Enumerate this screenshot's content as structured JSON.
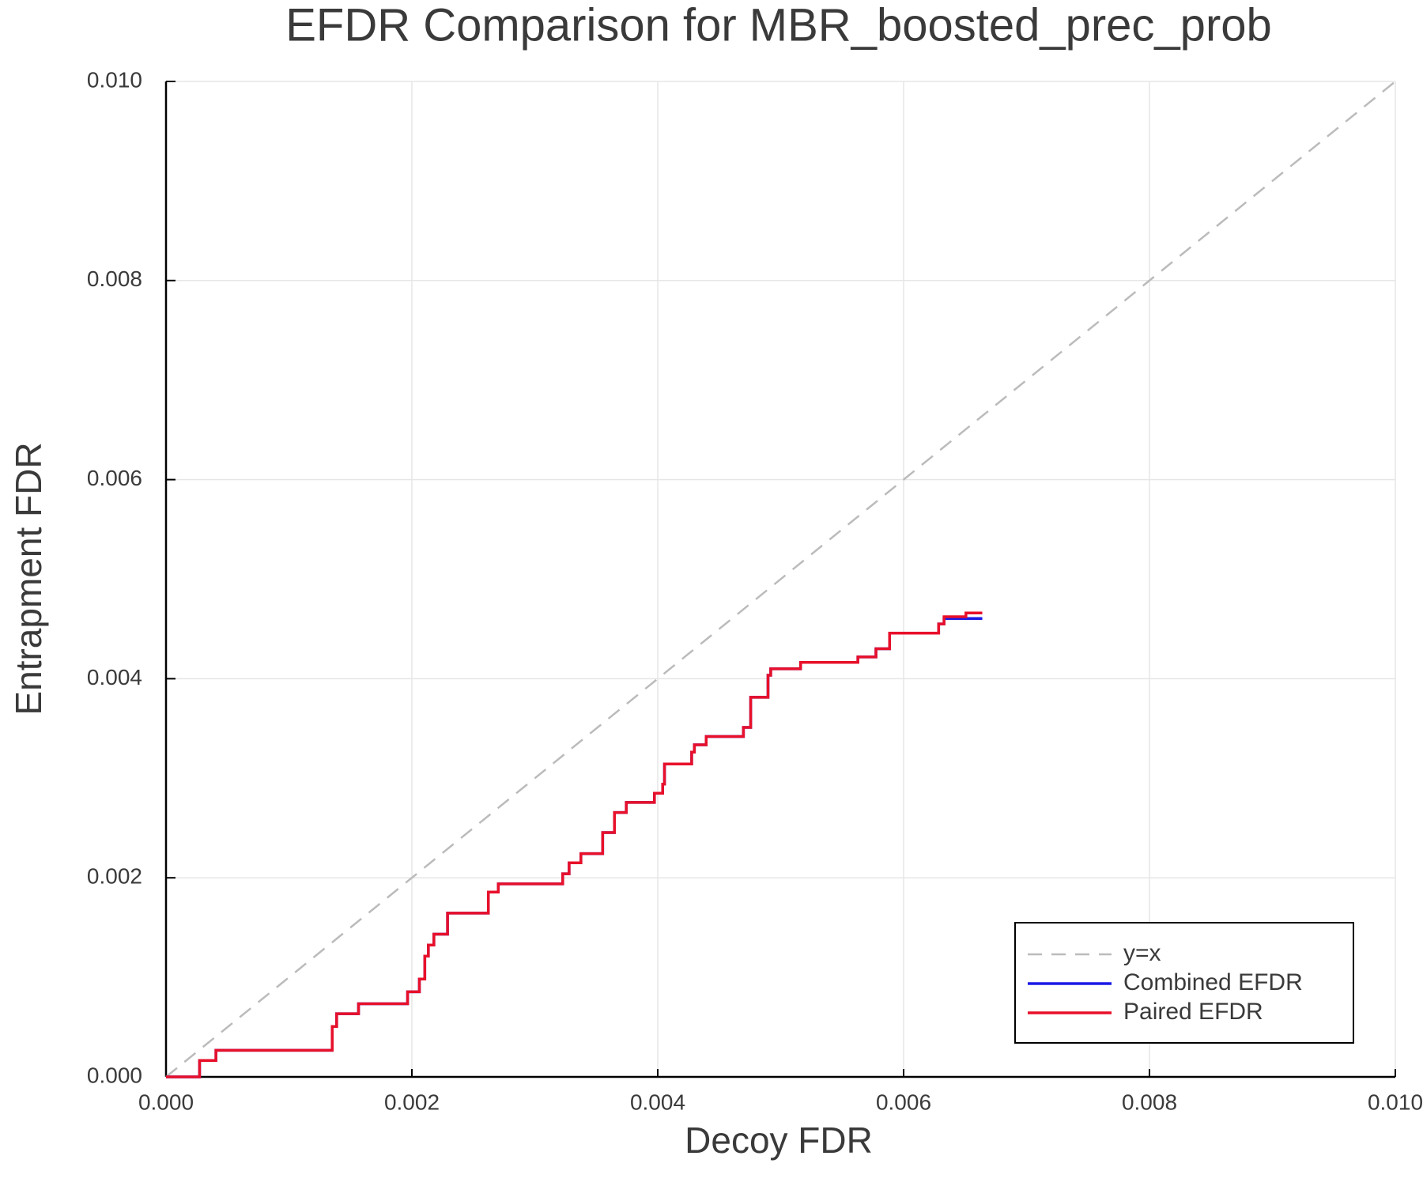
{
  "chart_data": {
    "type": "line",
    "title": "EFDR Comparison for MBR_boosted_prec_prob",
    "x_label": "Decoy FDR",
    "y_label": "Entrapment FDR",
    "xlim": [
      0,
      0.01
    ],
    "ylim": [
      0,
      0.01
    ],
    "xticks": [
      {
        "value": 0,
        "label": "0.000"
      },
      {
        "value": 0.002,
        "label": "0.002"
      },
      {
        "value": 0.004,
        "label": "0.004"
      },
      {
        "value": 0.006,
        "label": "0.006"
      },
      {
        "value": 0.008,
        "label": "0.008"
      },
      {
        "value": 0.01,
        "label": "0.010"
      }
    ],
    "yticks": [
      {
        "value": 0,
        "label": "0.000"
      },
      {
        "value": 0.002,
        "label": "0.002"
      },
      {
        "value": 0.004,
        "label": "0.004"
      },
      {
        "value": 0.006,
        "label": "0.006"
      },
      {
        "value": 0.008,
        "label": "0.008"
      },
      {
        "value": 0.01,
        "label": "0.010"
      }
    ],
    "grid": true,
    "legend": "bottom right",
    "series": [
      {
        "name": "y=x",
        "color": "#bbbbbb",
        "linestyle": "dash",
        "x": [
          0,
          0.01
        ],
        "y": [
          0,
          0.01
        ]
      },
      {
        "name": "Combined EFDR",
        "color": "#1a1ae6",
        "x": [
          0,
          0.000273,
          0.000273,
          0.000406,
          0.000406,
          0.001352,
          0.001352,
          0.001388,
          0.001388,
          0.001566,
          0.001566,
          0.001965,
          0.001965,
          0.002061,
          0.002061,
          0.002105,
          0.002105,
          0.002134,
          0.002134,
          0.002179,
          0.002179,
          0.00229,
          0.00229,
          0.002622,
          0.002622,
          0.002703,
          0.002703,
          0.003227,
          0.003227,
          0.003279,
          0.003279,
          0.003375,
          0.003375,
          0.003552,
          0.003552,
          0.003648,
          0.003648,
          0.003744,
          0.003744,
          0.003973,
          0.003973,
          0.00404,
          0.00404,
          0.004055,
          0.004055,
          0.004276,
          0.004276,
          0.004298,
          0.004298,
          0.004394,
          0.004394,
          0.004697,
          0.004697,
          0.004756,
          0.004756,
          0.004897,
          0.004897,
          0.004919,
          0.004919,
          0.005162,
          0.005162,
          0.005628,
          0.005628,
          0.005775,
          0.005775,
          0.005886,
          0.005886,
          0.006285,
          0.006285,
          0.006329,
          0.006329,
          0.00664
        ],
        "y": [
          0,
          0,
          0.000165,
          0.000165,
          0.000267,
          0.000267,
          0.000506,
          0.000506,
          0.000634,
          0.000634,
          0.000735,
          0.000735,
          0.000855,
          0.000855,
          0.000983,
          0.000983,
          0.001213,
          0.001213,
          0.001324,
          0.001324,
          0.001434,
          0.001434,
          0.001645,
          0.001645,
          0.001857,
          0.001857,
          0.001939,
          0.001939,
          0.00204,
          0.00204,
          0.002151,
          0.002151,
          0.002243,
          0.002243,
          0.002454,
          0.002454,
          0.002656,
          0.002656,
          0.002757,
          0.002757,
          0.002849,
          0.002849,
          0.002941,
          0.002941,
          0.003143,
          0.003143,
          0.003263,
          0.003263,
          0.003336,
          0.003336,
          0.003419,
          0.003419,
          0.003511,
          0.003511,
          0.003814,
          0.003814,
          0.004035,
          0.004035,
          0.004099,
          0.004099,
          0.004164,
          0.004164,
          0.004219,
          0.004219,
          0.004301,
          0.004301,
          0.004458,
          0.004458,
          0.00455,
          0.00455,
          0.004605,
          0.004605
        ]
      },
      {
        "name": "Paired EFDR",
        "color": "#e8102a",
        "x": [
          0,
          0.000273,
          0.000273,
          0.000406,
          0.000406,
          0.001352,
          0.001352,
          0.001388,
          0.001388,
          0.001566,
          0.001566,
          0.001965,
          0.001965,
          0.002061,
          0.002061,
          0.002105,
          0.002105,
          0.002134,
          0.002134,
          0.002179,
          0.002179,
          0.00229,
          0.00229,
          0.002622,
          0.002622,
          0.002703,
          0.002703,
          0.003227,
          0.003227,
          0.003279,
          0.003279,
          0.003375,
          0.003375,
          0.003552,
          0.003552,
          0.003648,
          0.003648,
          0.003744,
          0.003744,
          0.003973,
          0.003973,
          0.00404,
          0.00404,
          0.004055,
          0.004055,
          0.004276,
          0.004276,
          0.004298,
          0.004298,
          0.004394,
          0.004394,
          0.004697,
          0.004697,
          0.004756,
          0.004756,
          0.004897,
          0.004897,
          0.004919,
          0.004919,
          0.005162,
          0.005162,
          0.005628,
          0.005628,
          0.005775,
          0.005775,
          0.005886,
          0.005886,
          0.006285,
          0.006285,
          0.006329,
          0.006329,
          0.006507,
          0.006507,
          0.00664
        ],
        "y": [
          0,
          0,
          0.000165,
          0.000165,
          0.000267,
          0.000267,
          0.000506,
          0.000506,
          0.000634,
          0.000634,
          0.000735,
          0.000735,
          0.000855,
          0.000855,
          0.000983,
          0.000983,
          0.001213,
          0.001213,
          0.001324,
          0.001324,
          0.001434,
          0.001434,
          0.001645,
          0.001645,
          0.001857,
          0.001857,
          0.001939,
          0.001939,
          0.00204,
          0.00204,
          0.002151,
          0.002151,
          0.002243,
          0.002243,
          0.002454,
          0.002454,
          0.002656,
          0.002656,
          0.002757,
          0.002757,
          0.002849,
          0.002849,
          0.002941,
          0.002941,
          0.003143,
          0.003143,
          0.003263,
          0.003263,
          0.003336,
          0.003336,
          0.003419,
          0.003419,
          0.003511,
          0.003511,
          0.003814,
          0.003814,
          0.004035,
          0.004035,
          0.004099,
          0.004099,
          0.004164,
          0.004164,
          0.004219,
          0.004219,
          0.004301,
          0.004301,
          0.004458,
          0.004458,
          0.00455,
          0.00455,
          0.004623,
          0.004623,
          0.00466,
          0.00466
        ]
      }
    ]
  }
}
